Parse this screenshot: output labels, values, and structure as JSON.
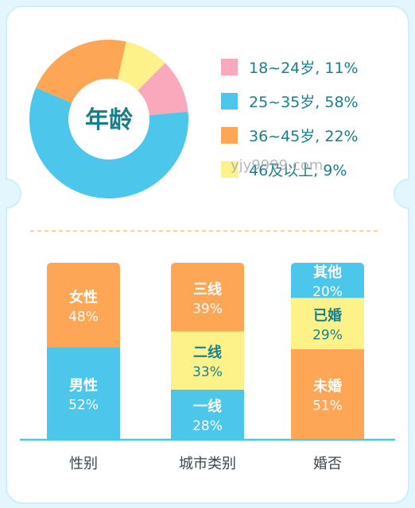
{
  "colors": {
    "pink": "#f9a9bb",
    "blue": "#4cc6ea",
    "orange": "#fca656",
    "yellow": "#fdf28a",
    "teal_text": "#1a7f8a",
    "label_text": "#3a4650",
    "divider": "#f6c77a",
    "baseline": "#4cc6ea"
  },
  "watermark": "yjy9999.com",
  "chart_data": [
    {
      "type": "pie",
      "donut": true,
      "title": "年龄",
      "legend_position": "right",
      "slices": [
        {
          "label": "18~24岁",
          "value": 11,
          "value_text": "11%",
          "color": "pink"
        },
        {
          "label": "25~35岁",
          "value": 58,
          "value_text": "58%",
          "color": "blue"
        },
        {
          "label": "36~45岁",
          "value": 22,
          "value_text": "22%",
          "color": "orange"
        },
        {
          "label": "46及以上",
          "value": 9,
          "value_text": "9%",
          "color": "yellow"
        }
      ]
    },
    {
      "type": "bar",
      "stacked": true,
      "percent_stacked": true,
      "categories": [
        "性别",
        "城市类别",
        "婚否"
      ],
      "stacks": [
        {
          "category": "性别",
          "segments": [
            {
              "label": "男性",
              "value": 52,
              "value_text": "52%",
              "color": "blue"
            },
            {
              "label": "女性",
              "value": 48,
              "value_text": "48%",
              "color": "orange"
            }
          ]
        },
        {
          "category": "城市类别",
          "segments": [
            {
              "label": "一线",
              "value": 28,
              "value_text": "28%",
              "color": "blue"
            },
            {
              "label": "二线",
              "value": 33,
              "value_text": "33%",
              "color": "yellow"
            },
            {
              "label": "三线",
              "value": 39,
              "value_text": "39%",
              "color": "orange"
            }
          ]
        },
        {
          "category": "婚否",
          "segments": [
            {
              "label": "未婚",
              "value": 51,
              "value_text": "51%",
              "color": "orange"
            },
            {
              "label": "已婚",
              "value": 29,
              "value_text": "29%",
              "color": "yellow"
            },
            {
              "label": "其他",
              "value": 20,
              "value_text": "20%",
              "color": "blue"
            }
          ]
        }
      ]
    }
  ]
}
